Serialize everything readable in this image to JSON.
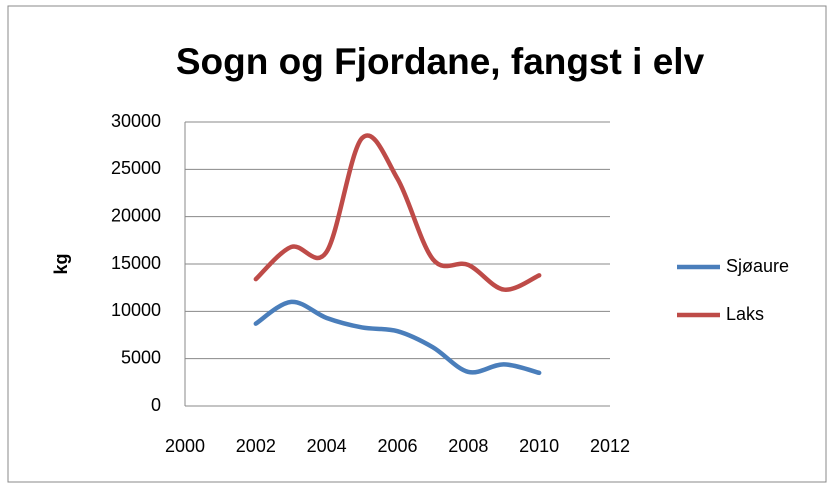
{
  "chart_data": {
    "type": "line",
    "title": "Sogn og Fjordane, fangst i elv",
    "y_label": "kg",
    "x": [
      2002,
      2003,
      2004,
      2005,
      2006,
      2007,
      2008,
      2009,
      2010
    ],
    "series": [
      {
        "name": "Sjøaure",
        "color": "#4a7ebb",
        "values": [
          8700,
          11000,
          9300,
          8300,
          7900,
          6200,
          3600,
          4400,
          3500
        ]
      },
      {
        "name": "Laks",
        "color": "#be4b48",
        "values": [
          13400,
          16800,
          16300,
          28300,
          24000,
          15500,
          14900,
          12300,
          13800
        ]
      }
    ],
    "xlim": [
      2000,
      2012
    ],
    "xticks": [
      2000,
      2002,
      2004,
      2006,
      2008,
      2010,
      2012
    ],
    "ylim": [
      0,
      30000
    ],
    "yticks": [
      0,
      5000,
      10000,
      15000,
      20000,
      25000,
      30000
    ],
    "grid": true,
    "smooth": true,
    "legend": "right"
  }
}
